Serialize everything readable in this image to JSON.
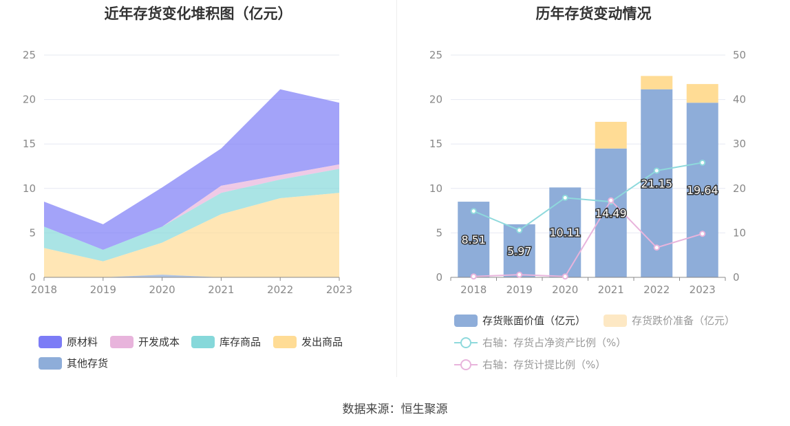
{
  "left_title": "近年存货变化堆积图（亿元）",
  "right_title": "历年存货变动情况",
  "source": "数据来源：恒生聚源",
  "chart_data": [
    {
      "type": "area",
      "title": "近年存货变化堆积图（亿元）",
      "stacked": true,
      "categories": [
        "2018",
        "2019",
        "2020",
        "2021",
        "2022",
        "2023"
      ],
      "ylim": [
        0,
        25
      ],
      "yticks": [
        0,
        5,
        10,
        15,
        20,
        25
      ],
      "grid": true,
      "legend_position": "bottom",
      "series": [
        {
          "name": "其他存货",
          "color": "#8eadd9",
          "values": [
            0,
            0,
            0.3,
            0,
            0,
            0
          ]
        },
        {
          "name": "发出商品",
          "color": "#ffdc95",
          "values": [
            3.3,
            1.8,
            3.6,
            7.1,
            8.9,
            9.5
          ]
        },
        {
          "name": "库存商品",
          "color": "#86d8da",
          "values": [
            2.4,
            1.3,
            1.8,
            2.4,
            2.1,
            2.7
          ]
        },
        {
          "name": "开发成本",
          "color": "#e8b4dc",
          "values": [
            0,
            0,
            0,
            0.8,
            0.5,
            0.5
          ]
        },
        {
          "name": "原材料",
          "color": "#7c7cf6",
          "values": [
            2.81,
            2.87,
            4.41,
            4.19,
            9.65,
            6.94
          ]
        }
      ]
    },
    {
      "type": "bar",
      "title": "历年存货变动情况",
      "categories": [
        "2018",
        "2019",
        "2020",
        "2021",
        "2022",
        "2023"
      ],
      "ylim": [
        0,
        25
      ],
      "yticks": [
        0,
        5,
        10,
        15,
        20,
        25
      ],
      "y2lim": [
        0,
        50
      ],
      "y2ticks": [
        0,
        10,
        20,
        30,
        40,
        50
      ],
      "grid": true,
      "legend_position": "bottom",
      "series": [
        {
          "name": "存货账面价值（亿元）",
          "kind": "bar",
          "color": "#8eadd9",
          "values": [
            8.51,
            5.97,
            10.11,
            14.49,
            21.15,
            19.64
          ],
          "labels": [
            "8.51",
            "5.97",
            "10.11",
            "14.49",
            "21.15",
            "19.64"
          ]
        },
        {
          "name": "存货跌价准备（亿元）",
          "kind": "bar",
          "color": "#ffdc95",
          "values": [
            0,
            0,
            0,
            3.0,
            1.5,
            2.1
          ]
        },
        {
          "name": "右轴：存货占净资产比例（%）",
          "kind": "line",
          "axis": "right",
          "color": "#8ed9dc",
          "values": [
            14.9,
            10.6,
            17.9,
            17.0,
            24.0,
            25.8
          ]
        },
        {
          "name": "右轴：存货计提比例（%）",
          "kind": "line",
          "axis": "right",
          "color": "#e8b4dc",
          "values": [
            0.2,
            0.6,
            0.2,
            17.3,
            6.7,
            9.8
          ]
        }
      ]
    }
  ]
}
